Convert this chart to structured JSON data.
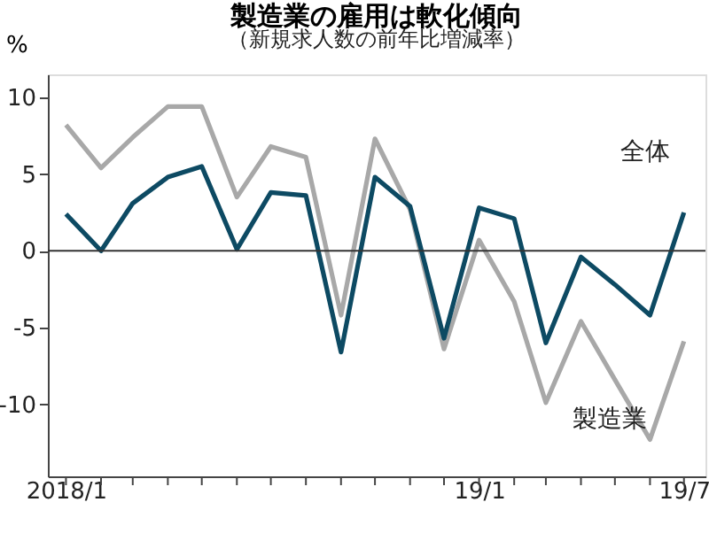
{
  "chart_data": {
    "type": "line",
    "title": "製造業の雇用は軟化傾向",
    "subtitle": "（新規求人数の前年比増減率）",
    "ylabel": "%",
    "x": [
      "2018-01",
      "2018-02",
      "2018-03",
      "2018-04",
      "2018-05",
      "2018-06",
      "2018-07",
      "2018-08",
      "2018-09",
      "2018-10",
      "2018-11",
      "2018-12",
      "2019-01",
      "2019-02",
      "2019-03",
      "2019-04",
      "2019-05",
      "2019-06",
      "2019-07"
    ],
    "series": [
      {
        "name": "製造業",
        "color": "#a8a8a8",
        "values": [
          8.2,
          5.4,
          7.4,
          9.4,
          9.4,
          3.5,
          6.8,
          6.1,
          -4.2,
          7.3,
          2.7,
          -6.4,
          0.7,
          -3.3,
          -9.9,
          -4.6,
          -8.4,
          -12.3,
          -5.9
        ]
      },
      {
        "name": "全体",
        "color": "#0d4a63",
        "values": [
          2.4,
          0.0,
          3.1,
          4.8,
          5.5,
          0.1,
          3.8,
          3.6,
          -6.6,
          4.8,
          2.9,
          -5.7,
          2.8,
          2.1,
          -6.0,
          -0.4,
          -2.2,
          -4.2,
          2.5
        ]
      }
    ],
    "ylim": [
      -14.7,
      11.5
    ],
    "yticks": [
      -10,
      -5,
      0,
      5,
      10
    ],
    "xlim": [
      "2017-12-16",
      "2019-07-20"
    ],
    "xticks": [
      {
        "value": "2018-01",
        "label": "2018/1"
      },
      {
        "value": "2018-02",
        "label": null
      },
      {
        "value": "2018-03",
        "label": null
      },
      {
        "value": "2018-04",
        "label": null
      },
      {
        "value": "2018-05",
        "label": null
      },
      {
        "value": "2018-06",
        "label": null
      },
      {
        "value": "2018-07",
        "label": null
      },
      {
        "value": "2018-08",
        "label": null
      },
      {
        "value": "2018-09",
        "label": null
      },
      {
        "value": "2018-10",
        "label": null
      },
      {
        "value": "2018-11",
        "label": null
      },
      {
        "value": "2018-12",
        "label": null
      },
      {
        "value": "2019-01",
        "label": "19/1"
      },
      {
        "value": "2019-02",
        "label": null
      },
      {
        "value": "2019-03",
        "label": null
      },
      {
        "value": "2019-04",
        "label": null
      },
      {
        "value": "2019-05",
        "label": null
      },
      {
        "value": "2019-06",
        "label": null
      },
      {
        "value": "2019-07",
        "label": "19/7"
      }
    ],
    "ref_lines": [
      {
        "axis": "y",
        "value": 0,
        "color": "#333333"
      }
    ],
    "grid": false,
    "marker": "none",
    "line_style": "solid"
  }
}
